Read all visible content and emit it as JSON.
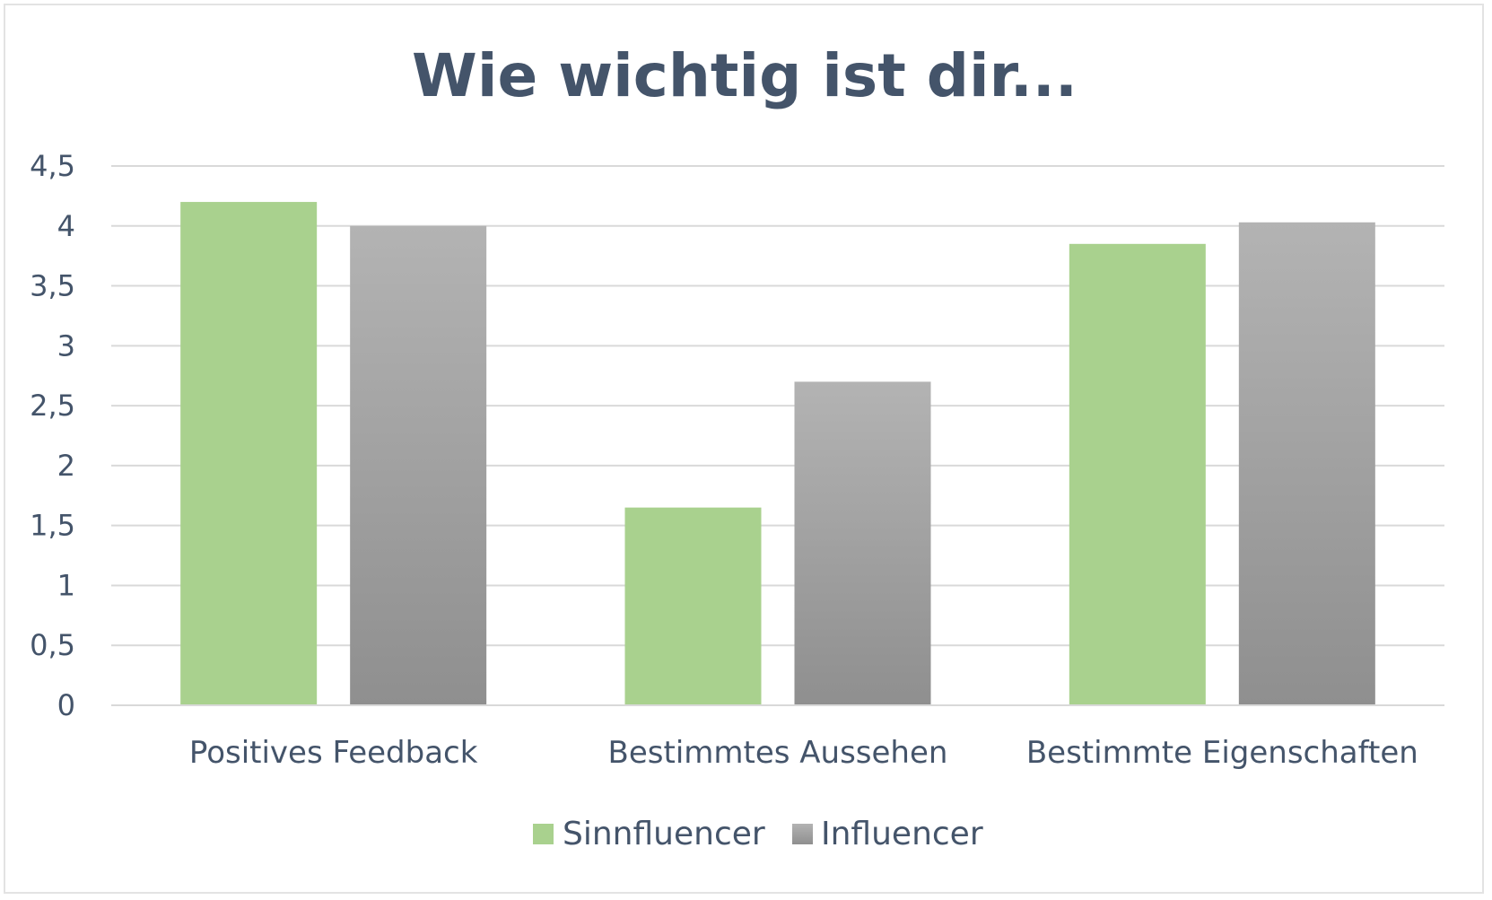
{
  "chart_data": {
    "type": "bar",
    "title": "Wie wichtig ist dir...",
    "categories": [
      "Positives Feedback",
      "Bestimmtes Aussehen",
      "Bestimmte Eigenschaften"
    ],
    "series": [
      {
        "name": "Sinnfluencer",
        "values": [
          4.2,
          1.65,
          3.85
        ],
        "color": "#a9d18e"
      },
      {
        "name": "Influencer",
        "values": [
          4.0,
          2.7,
          4.03
        ],
        "color": "#a6a6a6"
      }
    ],
    "ylim": [
      0,
      4.5
    ],
    "yticks": [
      "0",
      "0,5",
      "1",
      "1,5",
      "2",
      "2,5",
      "3",
      "3,5",
      "4",
      "4,5"
    ],
    "grid": true,
    "legend_position": "bottom",
    "colors": {
      "text": "#44546a",
      "grid": "#d9d9d9",
      "gradient_top": "#b3b3b3",
      "gradient_bottom": "#8f8f8f"
    }
  }
}
